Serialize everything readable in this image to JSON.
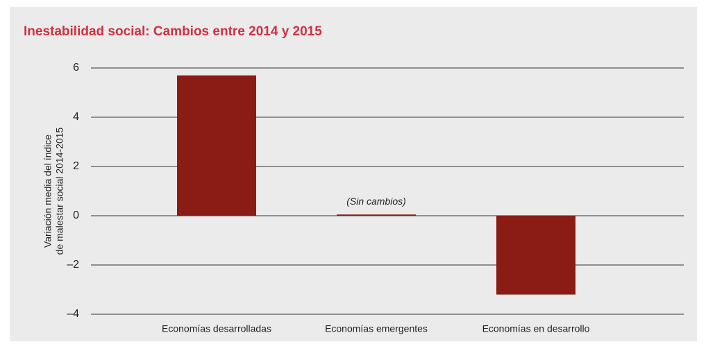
{
  "chart_data": {
    "type": "bar",
    "title": "Inestabilidad social: Cambios entre 2014 y 2015",
    "y_label": [
      "Variación media del índice",
      "de malestar social 2014-2015"
    ],
    "categories": [
      "Economías desarrolladas",
      "Economías emergentes",
      "Economías en desarrollo"
    ],
    "values": [
      5.7,
      0.05,
      -3.2
    ],
    "color": "#8b1c14",
    "annotations": [
      {
        "text": "(Sin cambios)",
        "category": 1
      }
    ],
    "ylim": [
      -4,
      6
    ],
    "yticks": [
      {
        "value": -4,
        "label": "–4"
      },
      {
        "value": -2,
        "label": "–2"
      },
      0,
      2,
      4,
      6
    ],
    "grid": true
  }
}
